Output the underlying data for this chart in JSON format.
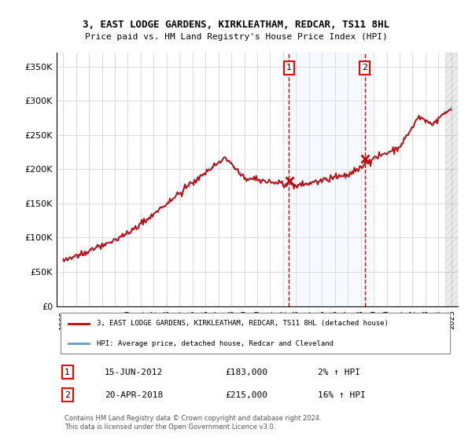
{
  "title": "3, EAST LODGE GARDENS, KIRKLEATHAM, REDCAR, TS11 8HL",
  "subtitle": "Price paid vs. HM Land Registry's House Price Index (HPI)",
  "ylabel": "",
  "ylim": [
    0,
    370000
  ],
  "yticks": [
    0,
    50000,
    100000,
    150000,
    200000,
    250000,
    300000,
    350000
  ],
  "ytick_labels": [
    "£0",
    "£50K",
    "£100K",
    "£150K",
    "£200K",
    "£250K",
    "£300K",
    "£350K"
  ],
  "sale1_date": 2012.46,
  "sale1_price": 183000,
  "sale1_label": "1",
  "sale1_text": "15-JUN-2012",
  "sale1_price_text": "£183,000",
  "sale1_hpi_text": "2% ↑ HPI",
  "sale2_date": 2018.3,
  "sale2_price": 215000,
  "sale2_label": "2",
  "sale2_text": "20-APR-2018",
  "sale2_price_text": "£215,000",
  "sale2_hpi_text": "16% ↑ HPI",
  "line_color_red": "#cc0000",
  "line_color_blue": "#6699cc",
  "shade_color": "#ddeeff",
  "grid_color": "#cccccc",
  "bg_color": "#ffffff",
  "footnote": "Contains HM Land Registry data © Crown copyright and database right 2024.\nThis data is licensed under the Open Government Licence v3.0.",
  "legend_label_red": "3, EAST LODGE GARDENS, KIRKLEATHAM, REDCAR, TS11 8HL (detached house)",
  "legend_label_blue": "HPI: Average price, detached house, Redcar and Cleveland"
}
